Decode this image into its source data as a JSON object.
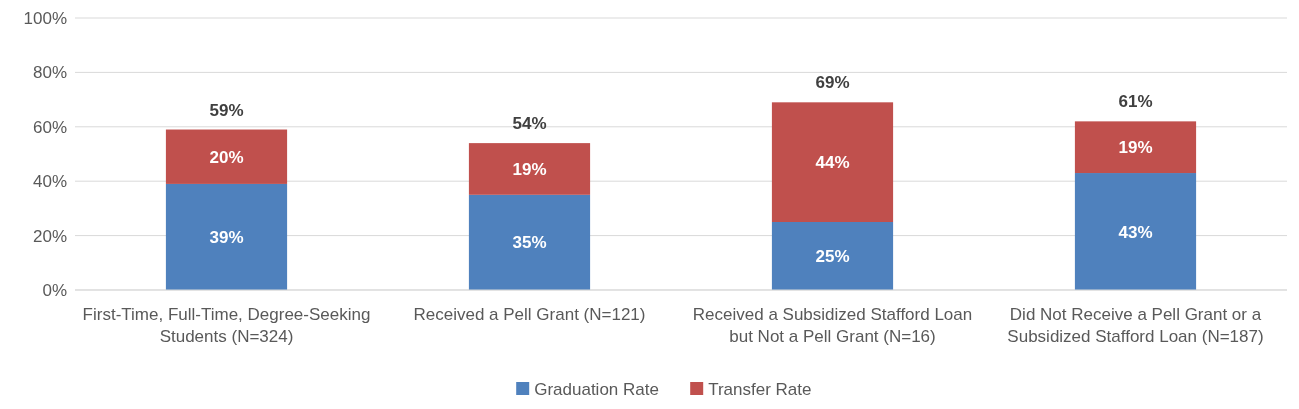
{
  "chart_data": {
    "type": "bar",
    "stacked": true,
    "categories": [
      "First-Time, Full-Time, Degree-Seeking Students (N=324)",
      "Received a Pell Grant (N=121)",
      "Received a Subsidized Stafford Loan but Not a Pell Grant (N=16)",
      "Did Not Receive a Pell Grant or a Subsidized Stafford Loan (N=187)"
    ],
    "series": [
      {
        "name": "Graduation Rate",
        "color": "#4f81bd",
        "values": [
          39,
          35,
          25,
          43
        ],
        "value_labels": [
          "39%",
          "35%",
          "25%",
          "43%"
        ]
      },
      {
        "name": "Transfer Rate",
        "color": "#c0504d",
        "values": [
          20,
          19,
          44,
          19
        ],
        "value_labels": [
          "20%",
          "19%",
          "44%",
          "19%"
        ]
      }
    ],
    "totals": [
      "59%",
      "54%",
      "69%",
      "61%"
    ],
    "ylim": [
      0,
      100
    ],
    "yticks": [
      {
        "value": 0,
        "label": "0%"
      },
      {
        "value": 20,
        "label": "20%"
      },
      {
        "value": 40,
        "label": "40%"
      },
      {
        "value": 60,
        "label": "60%"
      },
      {
        "value": 80,
        "label": "80%"
      },
      {
        "value": 100,
        "label": "100%"
      }
    ],
    "grid": "y",
    "legend": "bottom"
  }
}
